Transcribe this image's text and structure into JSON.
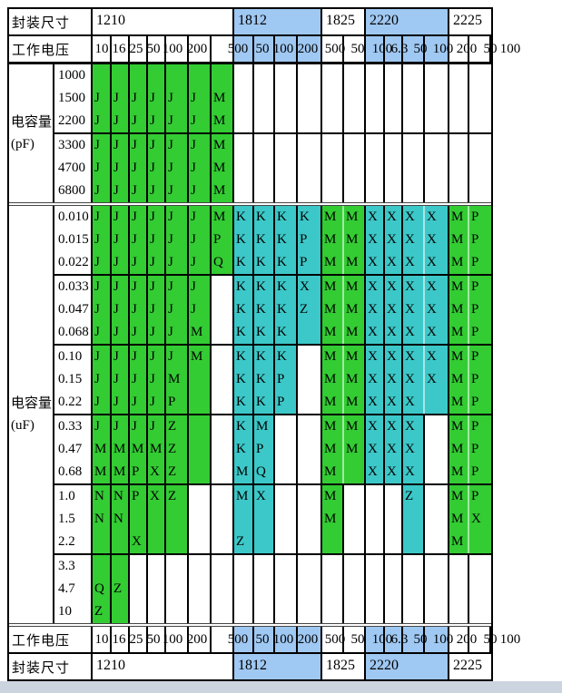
{
  "page": {
    "background": "#ffffff",
    "bottom_strip_color": "#ccd4e0"
  },
  "colors": {
    "green": "#33cc33",
    "cyan": "#3cc8c8",
    "blue": "#9fc8f2",
    "white": "#ffffff",
    "border": "#000000",
    "light_separator": "rgba(255,255,255,0.55)"
  },
  "table": {
    "package_row_label": "封装尺寸",
    "voltage_row_label": "工作电压",
    "packages": [
      {
        "name": "1210",
        "cols": 7,
        "highlight": false
      },
      {
        "name": "1812",
        "cols": 4,
        "highlight": true
      },
      {
        "name": "1825",
        "cols": 2,
        "highlight": false
      },
      {
        "name": "2220",
        "cols": 4,
        "highlight": true
      },
      {
        "name": "2225",
        "cols": 2,
        "highlight": false
      }
    ],
    "voltages": [
      "10",
      "16",
      "25",
      "50",
      "100",
      "200",
      "500",
      "50",
      "100",
      "200",
      "500",
      "50",
      "100",
      "6.3",
      "50",
      "100",
      "200",
      "50",
      "100"
    ],
    "voltage_cell_colors": "wwwwwwwbbbbwwbbbbww",
    "sections": [
      {
        "label_lines": [
          "电容量",
          "(pF)"
        ],
        "groups": [
          {
            "rows": [
              {
                "value": "1000",
                "colors": "gggggggwwwwwwwwwwww",
                "letters": "..................."
              },
              {
                "value": "1500",
                "colors": "gggggggwwwwwwwwwwww",
                "letters": "JJJJJJM............"
              },
              {
                "value": "2200",
                "colors": "gggggggwwwwwwwwwwww",
                "letters": "JJJJJJM............"
              }
            ]
          },
          {
            "rows": [
              {
                "value": "3300",
                "colors": "gggggggwwwwwwwwwwww",
                "letters": "JJJJJJM............"
              },
              {
                "value": "4700",
                "colors": "gggggggwwwwwwwwwwww",
                "letters": "JJJJJJM............"
              },
              {
                "value": "6800",
                "colors": "gggggggwwwwwwwwwwww",
                "letters": "JJJJJJM............"
              }
            ]
          }
        ]
      },
      {
        "label_lines": [
          "电容量",
          "(uF)"
        ],
        "groups": [
          {
            "rows": [
              {
                "value": "0.010",
                "colors": "gggggggccccggccccgg",
                "letters": "JJJJJJMKKKKMMXXXXMP"
              },
              {
                "value": "0.015",
                "colors": "gggggggccccggccccgg",
                "letters": "JJJJJJPKKKPMMXXXXMP"
              },
              {
                "value": "0.022",
                "colors": "gggggggccccggccccgg",
                "letters": "JJJJJJQKKKPMMXXXXMP"
              }
            ]
          },
          {
            "rows": [
              {
                "value": "0.033",
                "colors": "ggggggwccccggccccgg",
                "letters": "JJJJJJ.KKKXMMXXXXMP"
              },
              {
                "value": "0.047",
                "colors": "ggggggwccccggccccgg",
                "letters": "JJJJJJ.KKKZMMXXXXMP"
              },
              {
                "value": "0.068",
                "colors": "ggggggwccccggccccgg",
                "letters": "JJJJJM.KKK.MMXXXXMP"
              }
            ]
          },
          {
            "rows": [
              {
                "value": "0.10",
                "colors": "ggggggwcccwggccccgg",
                "letters": "JJJJJM.KKK.MMXXXXMP"
              },
              {
                "value": "0.15",
                "colors": "ggggggwcccwggccccgg",
                "letters": "JJJJM..KKP.MMXXXXMP"
              },
              {
                "value": "0.22",
                "colors": "ggggggwcccwggccccgg",
                "letters": "JJJJP..KKP.MMXXX.MP"
              }
            ]
          },
          {
            "rows": [
              {
                "value": "0.33",
                "colors": "ggggggwccwwggcccwgg",
                "letters": "JJJJZ..KM..MMXXX.MP"
              },
              {
                "value": "0.47",
                "colors": "ggggggwccwwggcccwgg",
                "letters": "MMMMZ..KP..MMXXX.MP"
              },
              {
                "value": "0.68",
                "colors": "ggggggwccwwggcccwgg",
                "letters": "MMPXZ..MQ..M.XXX.MP"
              }
            ]
          },
          {
            "rows": [
              {
                "value": "1.0",
                "colors": "gggggwwccwwgwwwcwgg",
                "letters": "NNPXZ..MX..M...Z.MP"
              },
              {
                "value": "1.5",
                "colors": "gggggwwccwwgwwwcwgg",
                "letters": "NN.........M.....MX"
              },
              {
                "value": "2.2",
                "colors": "gggggwwccwwgwwwcwgg",
                "letters": "..X....Z.........M."
              }
            ]
          },
          {
            "rows": [
              {
                "value": "3.3",
                "colors": "ggwwwwwwwwwwwwwwwww",
                "letters": "..................."
              },
              {
                "value": "4.7",
                "colors": "ggwwwwwwwwwwwwwwwww",
                "letters": "QZ................."
              },
              {
                "value": "10",
                "colors": "ggwwwwwwwwwwwwwwwww",
                "letters": "Z.................."
              }
            ]
          }
        ]
      }
    ],
    "footer_mirrors_header": true
  }
}
